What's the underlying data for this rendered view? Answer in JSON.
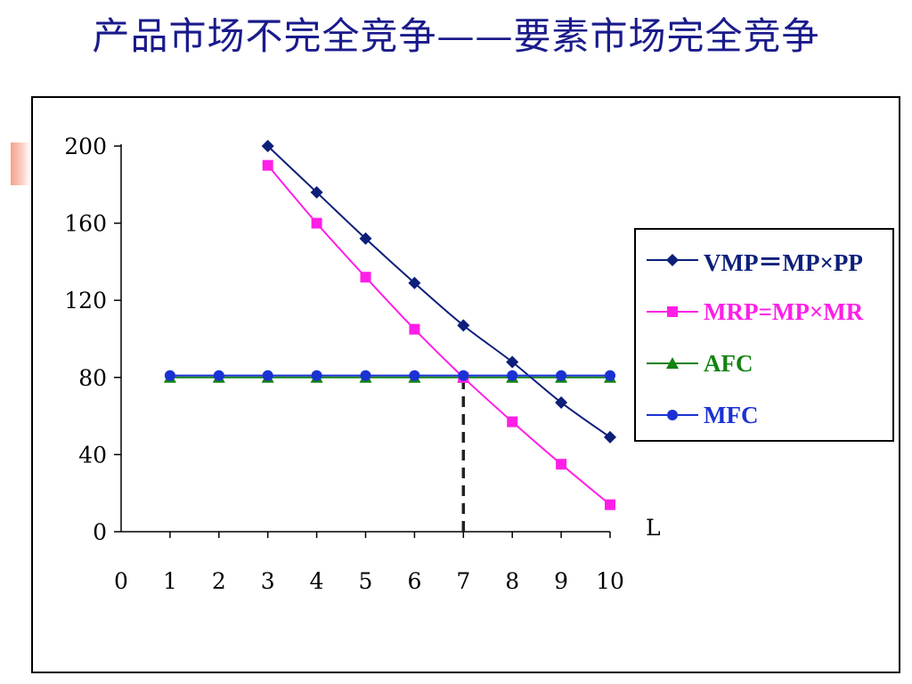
{
  "page": {
    "title": "产品市场不完全竞争——要素市场完全竞争"
  },
  "colors": {
    "title": "#1a1a8c",
    "vmp": "#0c1f7a",
    "mrp": "#ff1ee6",
    "afc": "#128212",
    "mfc": "#1a32d4",
    "equilibrium_line": "#222222"
  },
  "chart_data": {
    "type": "line",
    "x_tick_labels": [
      "0",
      "1",
      "2",
      "3",
      "4",
      "5",
      "6",
      "7",
      "8",
      "9",
      "10"
    ],
    "y_tick_labels": [
      "0",
      "40",
      "80",
      "120",
      "160",
      "200"
    ],
    "xlabel": "L",
    "ylabel": "",
    "xlim": [
      0,
      10
    ],
    "ylim": [
      0,
      200
    ],
    "grid": false,
    "legend_position": "right",
    "series": [
      {
        "key": "vmp",
        "name": "VMP＝MP×PP",
        "marker": "diamond",
        "x": [
          3,
          4,
          5,
          6,
          7,
          8,
          9,
          10
        ],
        "values": [
          200,
          176,
          152,
          129,
          107,
          88,
          67,
          49
        ]
      },
      {
        "key": "mrp",
        "name": "MRP=MP×MR",
        "marker": "square",
        "x": [
          3,
          4,
          5,
          6,
          7,
          8,
          9,
          10
        ],
        "values": [
          190,
          160,
          132,
          105,
          80,
          57,
          35,
          14
        ]
      },
      {
        "key": "afc",
        "name": "AFC",
        "marker": "triangle",
        "x": [
          1,
          2,
          3,
          4,
          5,
          6,
          7,
          8,
          9,
          10
        ],
        "values": [
          80,
          80,
          80,
          80,
          80,
          80,
          80,
          80,
          80,
          80
        ]
      },
      {
        "key": "mfc",
        "name": "MFC",
        "marker": "circle",
        "x": [
          1,
          2,
          3,
          4,
          5,
          6,
          7,
          8,
          9,
          10
        ],
        "values": [
          81,
          81,
          81,
          81,
          81,
          81,
          81,
          81,
          81,
          81
        ]
      }
    ],
    "annotations": [
      {
        "type": "vertical-dashed-line",
        "x": 7,
        "y_from": 0,
        "y_to": 80
      }
    ]
  }
}
